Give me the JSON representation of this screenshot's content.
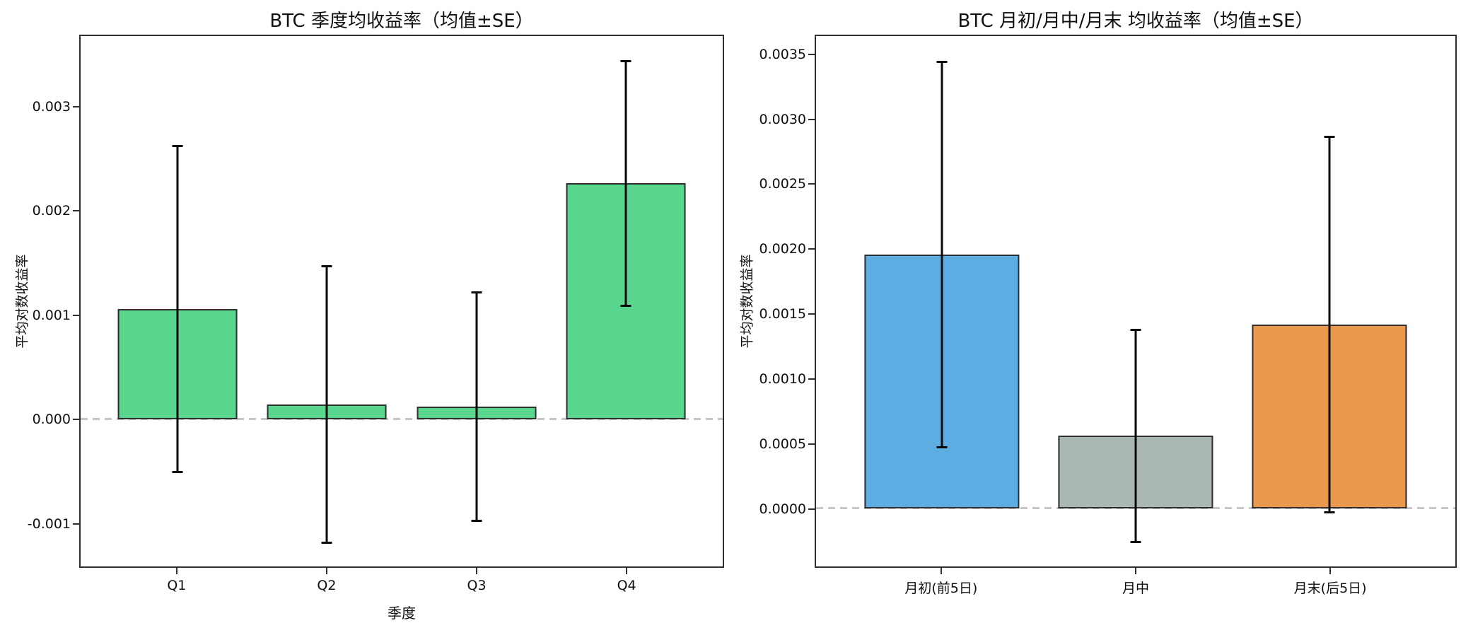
{
  "figure": {
    "background": "#ffffff",
    "text_color": "#111111",
    "spine_color": "#2f2f2f",
    "error_bar_color": "#0a0a0a",
    "zero_line_color": "#c6c6c6"
  },
  "chart_data": [
    {
      "type": "bar",
      "title": "BTC 季度均收益率（均值±SE）",
      "xlabel": "季度",
      "ylabel": "平均对数收益率",
      "categories": [
        "Q1",
        "Q2",
        "Q3",
        "Q4"
      ],
      "series": [
        {
          "name": "均值",
          "values": [
            0.00106,
            0.00014,
            0.00012,
            0.00227
          ]
        },
        {
          "name": "SE",
          "values": [
            0.00157,
            0.00133,
            0.0011,
            0.00118
          ]
        }
      ],
      "error_bars": "mean ± SE, symmetric, black caps",
      "bar_colors": [
        "#58d68d",
        "#58d68d",
        "#58d68d",
        "#58d68d"
      ],
      "edge_color": "#2e2e2e",
      "ylim": [
        -0.00142,
        0.00369
      ],
      "yticks": [
        {
          "value": 0.003,
          "label": "0.003"
        },
        {
          "value": 0.002,
          "label": "0.002"
        },
        {
          "value": 0.001,
          "label": "0.001"
        },
        {
          "value": 0.0,
          "label": "0.000"
        },
        {
          "value": -0.001,
          "label": "-0.001"
        }
      ],
      "zero_dashed_line": true,
      "grid": false,
      "legend": null
    },
    {
      "type": "bar",
      "title": "BTC 月初/月中/月末 均收益率（均值±SE）",
      "xlabel": "",
      "ylabel": "平均对数收益率",
      "categories": [
        "月初(前5日)",
        "月中",
        "月末(后5日)"
      ],
      "series": [
        {
          "name": "均值",
          "values": [
            0.00196,
            0.00056,
            0.00142
          ]
        },
        {
          "name": "SE",
          "values": [
            0.00149,
            0.00082,
            0.00145
          ]
        }
      ],
      "error_bars": "mean ± SE, symmetric, black caps",
      "bar_colors": [
        "#5dade2",
        "#aab7b5",
        "#eb984e"
      ],
      "edge_color": "#2e2e2e",
      "ylim": [
        -0.00045,
        0.00365
      ],
      "yticks": [
        {
          "value": 0.0035,
          "label": "0.0035"
        },
        {
          "value": 0.003,
          "label": "0.0030"
        },
        {
          "value": 0.0025,
          "label": "0.0025"
        },
        {
          "value": 0.002,
          "label": "0.0020"
        },
        {
          "value": 0.0015,
          "label": "0.0015"
        },
        {
          "value": 0.001,
          "label": "0.0010"
        },
        {
          "value": 0.0005,
          "label": "0.0005"
        },
        {
          "value": 0.0,
          "label": "0.0000"
        }
      ],
      "zero_dashed_line": true,
      "grid": false,
      "legend": null
    }
  ]
}
